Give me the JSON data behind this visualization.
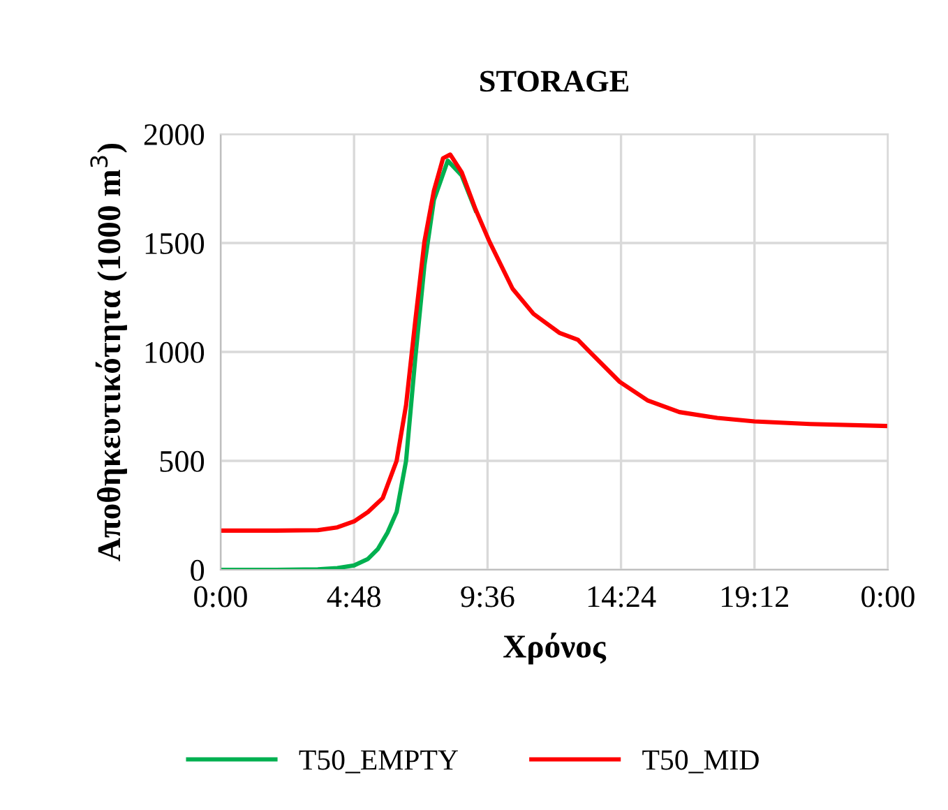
{
  "chart_data": {
    "type": "line",
    "title": "STORAGE",
    "xlabel": "Χρόνος",
    "ylabel": "Αποθηκευτικότητα (1000 m$^{3}$)",
    "xlim": [
      0,
      24
    ],
    "xticks": [
      {
        "value": 0,
        "label": "0:00"
      },
      {
        "value": 4.8,
        "label": "4:48"
      },
      {
        "value": 9.6,
        "label": "9:36"
      },
      {
        "value": 14.4,
        "label": "14:24"
      },
      {
        "value": 19.2,
        "label": "19:12"
      },
      {
        "value": 24,
        "label": "0:00"
      }
    ],
    "ylim": [
      0,
      2000
    ],
    "yticks": [
      0,
      500,
      1000,
      1500,
      2000
    ],
    "grid": true,
    "legend": "bottom",
    "marker": "none",
    "line_style": "solid",
    "series": [
      {
        "name": "T50_EMPTY",
        "color": "#00b050",
        "x": [
          0,
          2,
          3.5,
          4.2,
          4.8,
          5.3,
          5.66,
          6.0,
          6.33,
          6.67,
          7.0,
          7.33,
          7.67,
          8.17,
          8.67,
          9.17
        ],
        "values": [
          0,
          0,
          2,
          8,
          20,
          50,
          96,
          170,
          265,
          500,
          970,
          1397,
          1697,
          1878,
          1810,
          1650
        ]
      },
      {
        "name": "T50_MID",
        "color": "#ff0000",
        "x": [
          0,
          2,
          3.5,
          4.2,
          4.8,
          5.3,
          5.83,
          6.33,
          6.67,
          7.0,
          7.33,
          7.67,
          8.0,
          8.26,
          8.67,
          9.17,
          9.67,
          10.5,
          11.25,
          12.18,
          12.85,
          13.35,
          14.35,
          15.35,
          16.5,
          17.86,
          19.2,
          21.2,
          24
        ],
        "values": [
          180,
          180,
          182,
          195,
          222,
          265,
          329,
          500,
          756,
          1141,
          1506,
          1739,
          1889,
          1906,
          1825,
          1654,
          1506,
          1290,
          1175,
          1088,
          1056,
          991,
          863,
          778,
          724,
          697,
          681,
          669,
          660
        ]
      }
    ]
  }
}
